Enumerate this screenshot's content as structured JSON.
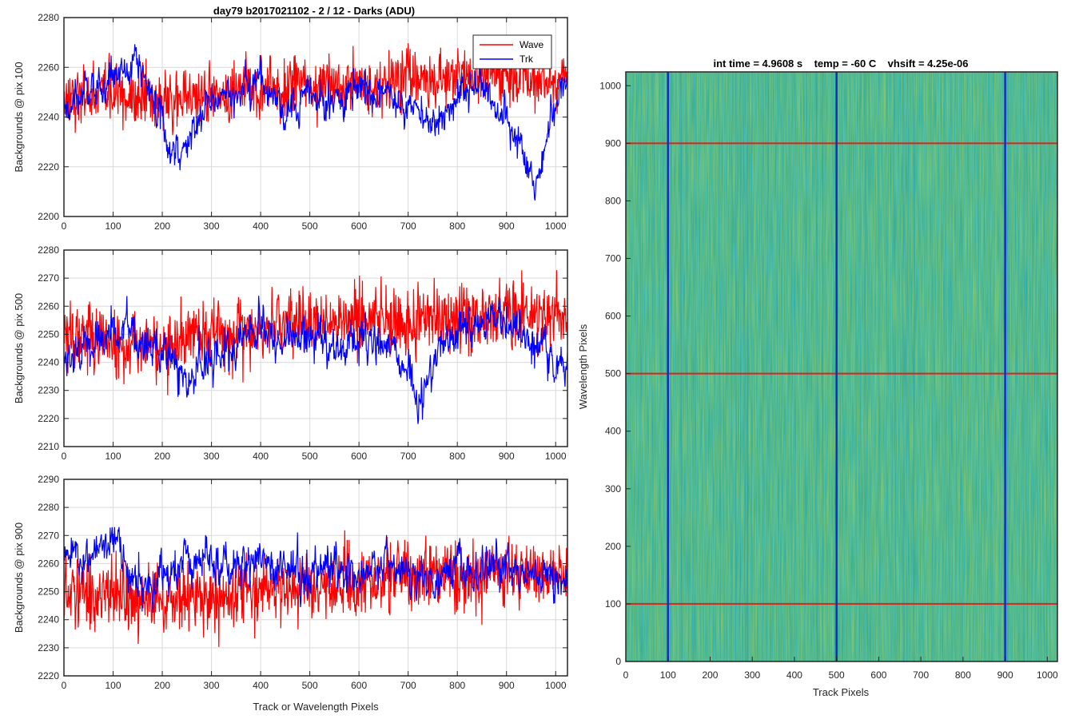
{
  "figure": {
    "left_title": "day79 b2017021102 - 2 / 12 - Darks (ADU)",
    "left_xlabel": "Track or Wavelength Pixels",
    "right_title": "int time = 4.9608 s    temp = -60 C    vhsift = 4.25e-06",
    "right_xlabel": "Track Pixels",
    "right_ylabel": "Wavelength Pixels"
  },
  "colors": {
    "wave": "#ff0000",
    "trk": "#0000ff",
    "grid": "#d9d9d9",
    "axes": "#262626",
    "image_base": "#3aaf95",
    "marker_h": "#e02020",
    "marker_v": "#1030c0"
  },
  "chart_data": [
    {
      "type": "line",
      "title": "day79 b2017021102 - 2 / 12 - Darks (ADU)",
      "xlabel": "",
      "ylabel": "Backgrounds @ pix 100",
      "xlim": [
        0,
        1024
      ],
      "ylim": [
        2200,
        2280
      ],
      "xticks": [
        0,
        100,
        200,
        300,
        400,
        500,
        600,
        700,
        800,
        900,
        1000
      ],
      "yticks": [
        2200,
        2220,
        2240,
        2260,
        2280
      ],
      "grid": true,
      "legend": {
        "position": "top-right",
        "entries": [
          "Wave",
          "Trk"
        ]
      },
      "series": [
        {
          "name": "Wave",
          "color": "#ff0000",
          "x": [
            0,
            100,
            200,
            300,
            400,
            500,
            600,
            700,
            800,
            900,
            1024
          ],
          "values": [
            2248,
            2250,
            2246,
            2249,
            2252,
            2254,
            2252,
            2255,
            2256,
            2256,
            2255
          ]
        },
        {
          "name": "Trk",
          "color": "#0000ff",
          "x": [
            0,
            50,
            100,
            150,
            180,
            200,
            220,
            260,
            300,
            360,
            400,
            450,
            500,
            540,
            600,
            650,
            700,
            760,
            800,
            850,
            880,
            920,
            960,
            990,
            1024
          ],
          "values": [
            2244,
            2250,
            2255,
            2262,
            2250,
            2240,
            2224,
            2232,
            2246,
            2250,
            2255,
            2240,
            2250,
            2244,
            2252,
            2248,
            2244,
            2238,
            2250,
            2252,
            2242,
            2232,
            2210,
            2240,
            2260
          ]
        }
      ]
    },
    {
      "type": "line",
      "xlabel": "",
      "ylabel": "Backgrounds @ pix 500",
      "xlim": [
        0,
        1024
      ],
      "ylim": [
        2210,
        2280
      ],
      "xticks": [
        0,
        100,
        200,
        300,
        400,
        500,
        600,
        700,
        800,
        900,
        1000
      ],
      "yticks": [
        2210,
        2220,
        2230,
        2240,
        2250,
        2260,
        2270,
        2280
      ],
      "grid": true,
      "series": [
        {
          "name": "Wave",
          "color": "#ff0000",
          "x": [
            0,
            100,
            200,
            300,
            400,
            500,
            600,
            700,
            800,
            900,
            1024
          ],
          "values": [
            2250,
            2248,
            2246,
            2250,
            2252,
            2254,
            2256,
            2254,
            2256,
            2258,
            2256
          ]
        },
        {
          "name": "Trk",
          "color": "#0000ff",
          "x": [
            0,
            50,
            100,
            150,
            200,
            250,
            300,
            350,
            400,
            450,
            500,
            550,
            600,
            650,
            700,
            730,
            760,
            800,
            850,
            900,
            950,
            1000,
            1024
          ],
          "values": [
            2242,
            2244,
            2252,
            2248,
            2244,
            2232,
            2240,
            2248,
            2252,
            2246,
            2250,
            2244,
            2250,
            2246,
            2240,
            2226,
            2248,
            2252,
            2254,
            2256,
            2248,
            2240,
            2243
          ]
        }
      ]
    },
    {
      "type": "line",
      "xlabel": "Track or Wavelength Pixels",
      "ylabel": "Backgrounds @ pix 900",
      "xlim": [
        0,
        1024
      ],
      "ylim": [
        2220,
        2290
      ],
      "xticks": [
        0,
        100,
        200,
        300,
        400,
        500,
        600,
        700,
        800,
        900,
        1000
      ],
      "yticks": [
        2220,
        2230,
        2240,
        2250,
        2260,
        2270,
        2280,
        2290
      ],
      "grid": true,
      "series": [
        {
          "name": "Wave",
          "color": "#ff0000",
          "x": [
            0,
            100,
            200,
            300,
            400,
            500,
            600,
            700,
            800,
            900,
            1024
          ],
          "values": [
            2250,
            2248,
            2246,
            2248,
            2250,
            2252,
            2252,
            2256,
            2256,
            2256,
            2256
          ]
        },
        {
          "name": "Trk",
          "color": "#0000ff",
          "x": [
            0,
            50,
            100,
            150,
            200,
            250,
            300,
            350,
            400,
            450,
            500,
            550,
            600,
            650,
            700,
            750,
            800,
            850,
            900,
            950,
            1000,
            1024
          ],
          "values": [
            2262,
            2262,
            2270,
            2250,
            2256,
            2262,
            2260,
            2256,
            2262,
            2258,
            2256,
            2260,
            2254,
            2260,
            2256,
            2252,
            2258,
            2256,
            2260,
            2256,
            2254,
            2256
          ]
        }
      ]
    },
    {
      "type": "heatmap",
      "title": "int time = 4.9608 s    temp = -60 C    vhsift = 4.25e-06",
      "xlabel": "Track Pixels",
      "ylabel": "Wavelength Pixels",
      "xlim": [
        0,
        1024
      ],
      "ylim": [
        0,
        1024
      ],
      "xticks": [
        0,
        100,
        200,
        300,
        400,
        500,
        600,
        700,
        800,
        900,
        1000
      ],
      "yticks": [
        0,
        100,
        200,
        300,
        400,
        500,
        600,
        700,
        800,
        900,
        1000
      ],
      "colormap": "parula",
      "marker_rows": [
        100,
        500,
        900
      ],
      "marker_cols": [
        100,
        500,
        900
      ]
    }
  ]
}
